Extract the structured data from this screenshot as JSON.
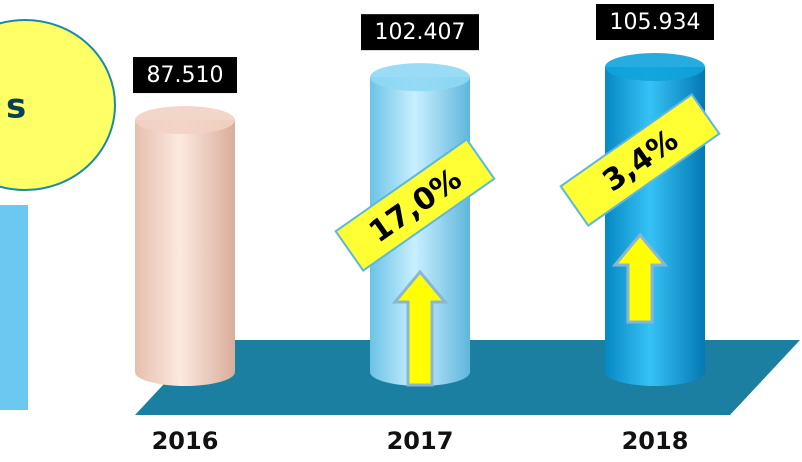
{
  "chart_data": {
    "type": "bar",
    "categories": [
      "2016",
      "2017",
      "2018"
    ],
    "values": [
      87510,
      102407,
      105934
    ],
    "value_labels": [
      "87.510",
      "102.407",
      "105.934"
    ],
    "colors": [
      "#f2d2c4",
      "#8fd8f4",
      "#0fa3dc"
    ],
    "annotations": [
      "17,0%",
      "3,4%"
    ],
    "badge_text": "s"
  }
}
